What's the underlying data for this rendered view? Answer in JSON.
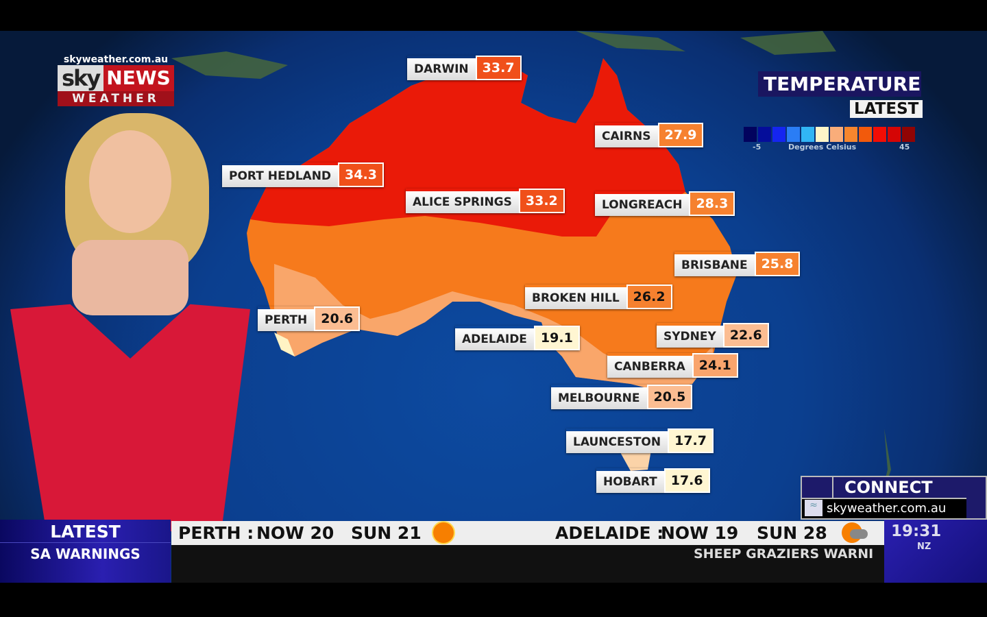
{
  "branding": {
    "url": "skyweather.com.au",
    "sky": "sky",
    "news": "NEWS",
    "weather": "WEATHER"
  },
  "panel": {
    "title": "TEMPERATURE",
    "subtitle": "LATEST",
    "scale_min": "-5",
    "scale_max": "45",
    "scale_label": "Degrees Celsius",
    "scale_colors": [
      "#02035e",
      "#050d9a",
      "#1525f0",
      "#2a7df5",
      "#31b5f5",
      "#fff5c8",
      "#f9ad7a",
      "#f7862e",
      "#f25a0c",
      "#f20d05",
      "#d50505",
      "#900404"
    ]
  },
  "cities": [
    {
      "name": "DARWIN",
      "value": "33.7",
      "color": "#f0501a",
      "text": "#fff"
    },
    {
      "name": "PORT HEDLAND",
      "value": "34.3",
      "color": "#f0501a",
      "text": "#fff"
    },
    {
      "name": "ALICE SPRINGS",
      "value": "33.2",
      "color": "#f0501a",
      "text": "#fff"
    },
    {
      "name": "CAIRNS",
      "value": "27.9",
      "color": "#f6812f",
      "text": "#fff"
    },
    {
      "name": "LONGREACH",
      "value": "28.3",
      "color": "#f6812f",
      "text": "#fff"
    },
    {
      "name": "BRISBANE",
      "value": "25.8",
      "color": "#f6812f",
      "text": "#fff"
    },
    {
      "name": "BROKEN HILL",
      "value": "26.2",
      "color": "#f6812f",
      "text": "#111"
    },
    {
      "name": "PERTH",
      "value": "20.6",
      "color": "#fbbd92",
      "text": "#111"
    },
    {
      "name": "ADELAIDE",
      "value": "19.1",
      "color": "#fff6d2",
      "text": "#111"
    },
    {
      "name": "SYDNEY",
      "value": "22.6",
      "color": "#fbbd92",
      "text": "#111"
    },
    {
      "name": "CANBERRA",
      "value": "24.1",
      "color": "#f9a46c",
      "text": "#111"
    },
    {
      "name": "MELBOURNE",
      "value": "20.5",
      "color": "#fbbd92",
      "text": "#111"
    },
    {
      "name": "LAUNCESTON",
      "value": "17.7",
      "color": "#fff6d2",
      "text": "#111"
    },
    {
      "name": "HOBART",
      "value": "17.6",
      "color": "#fff6d2",
      "text": "#111"
    }
  ],
  "connect": {
    "title": "CONNECT",
    "url": "skyweather.com.au"
  },
  "ticker": {
    "label": "LATEST",
    "sublabel": "SA WARNINGS",
    "perth": {
      "city": "PERTH :",
      "now": "NOW  20",
      "sun": "SUN  21",
      "icon": "sun-icon"
    },
    "adelaide": {
      "city": "ADELAIDE :",
      "now": "NOW  19",
      "sun": "SUN  28",
      "icon": "sun-cloud-rain-icon"
    },
    "crawl": "SHEEP GRAZIERS WARNI"
  },
  "clock": {
    "time": "19:31",
    "zone": "NZ"
  }
}
